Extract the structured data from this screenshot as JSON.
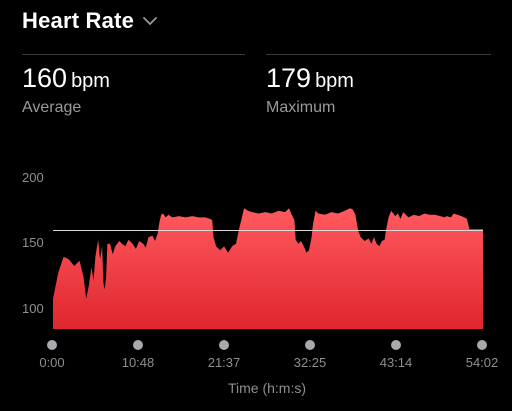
{
  "header": {
    "title": "Heart Rate",
    "dropdown_icon": "chevron-down-icon"
  },
  "stats": {
    "average": {
      "value": "160",
      "unit": "bpm",
      "label": "Average"
    },
    "maximum": {
      "value": "179",
      "unit": "bpm",
      "label": "Maximum"
    }
  },
  "colors": {
    "background": "#000000",
    "fill_top": "#ff5a5f",
    "fill_bottom": "#e0262e",
    "average_line": "#d9d9d9",
    "muted_text": "#8e8e93"
  },
  "chart_data": {
    "type": "area",
    "ylim": [
      85,
      200
    ],
    "xlim_seconds": [
      0,
      3242
    ],
    "y_ticks": [
      "200",
      "150",
      "100"
    ],
    "x_ticks": [
      "0:00",
      "10:48",
      "21:37",
      "32:25",
      "43:14",
      "54:02"
    ],
    "xlabel": "Time (h:m:s)",
    "average_line": 160,
    "series": [
      {
        "values": [
          [
            0,
            108
          ],
          [
            40,
            128
          ],
          [
            80,
            140
          ],
          [
            120,
            138
          ],
          [
            160,
            133
          ],
          [
            200,
            137
          ],
          [
            230,
            125
          ],
          [
            250,
            108
          ],
          [
            270,
            118
          ],
          [
            290,
            132
          ],
          [
            305,
            122
          ],
          [
            320,
            140
          ],
          [
            340,
            153
          ],
          [
            355,
            138
          ],
          [
            370,
            148
          ],
          [
            380,
            120
          ],
          [
            390,
            115
          ],
          [
            400,
            125
          ],
          [
            410,
            150
          ],
          [
            430,
            150
          ],
          [
            450,
            142
          ],
          [
            470,
            148
          ],
          [
            500,
            152
          ],
          [
            520,
            150
          ],
          [
            545,
            148
          ],
          [
            570,
            153
          ],
          [
            600,
            150
          ],
          [
            625,
            146
          ],
          [
            650,
            152
          ],
          [
            680,
            150
          ],
          [
            700,
            147
          ],
          [
            720,
            155
          ],
          [
            750,
            156
          ],
          [
            770,
            152
          ],
          [
            790,
            158
          ],
          [
            800,
            165
          ],
          [
            815,
            172
          ],
          [
            830,
            173
          ],
          [
            850,
            170
          ],
          [
            870,
            172
          ],
          [
            900,
            170
          ],
          [
            950,
            171
          ],
          [
            1000,
            170
          ],
          [
            1050,
            171
          ],
          [
            1100,
            170
          ],
          [
            1150,
            170
          ],
          [
            1180,
            169
          ],
          [
            1200,
            168
          ],
          [
            1210,
            155
          ],
          [
            1230,
            148
          ],
          [
            1260,
            145
          ],
          [
            1290,
            148
          ],
          [
            1320,
            143
          ],
          [
            1350,
            148
          ],
          [
            1380,
            150
          ],
          [
            1400,
            160
          ],
          [
            1420,
            168
          ],
          [
            1440,
            177
          ],
          [
            1470,
            175
          ],
          [
            1500,
            174
          ],
          [
            1550,
            173
          ],
          [
            1600,
            174
          ],
          [
            1650,
            173
          ],
          [
            1700,
            175
          ],
          [
            1750,
            174
          ],
          [
            1780,
            177
          ],
          [
            1800,
            172
          ],
          [
            1820,
            168
          ],
          [
            1830,
            153
          ],
          [
            1850,
            150
          ],
          [
            1870,
            152
          ],
          [
            1890,
            148
          ],
          [
            1900,
            146
          ],
          [
            1910,
            143
          ],
          [
            1930,
            145
          ],
          [
            1950,
            155
          ],
          [
            1960,
            165
          ],
          [
            1980,
            175
          ],
          [
            2000,
            173
          ],
          [
            2050,
            172
          ],
          [
            2100,
            174
          ],
          [
            2150,
            173
          ],
          [
            2200,
            175
          ],
          [
            2240,
            177
          ],
          [
            2260,
            176
          ],
          [
            2280,
            172
          ],
          [
            2300,
            160
          ],
          [
            2320,
            155
          ],
          [
            2350,
            152
          ],
          [
            2380,
            154
          ],
          [
            2400,
            150
          ],
          [
            2420,
            155
          ],
          [
            2440,
            150
          ],
          [
            2460,
            148
          ],
          [
            2480,
            152
          ],
          [
            2500,
            153
          ],
          [
            2510,
            160
          ],
          [
            2530,
            170
          ],
          [
            2550,
            175
          ],
          [
            2580,
            171
          ],
          [
            2600,
            173
          ],
          [
            2620,
            169
          ],
          [
            2640,
            174
          ],
          [
            2680,
            170
          ],
          [
            2720,
            172
          ],
          [
            2760,
            171
          ],
          [
            2800,
            173
          ],
          [
            2840,
            172
          ],
          [
            2880,
            172
          ],
          [
            2920,
            171
          ],
          [
            2950,
            170
          ],
          [
            2970,
            171
          ],
          [
            3000,
            170
          ],
          [
            3020,
            173
          ],
          [
            3050,
            172
          ],
          [
            3080,
            171
          ],
          [
            3100,
            170
          ],
          [
            3120,
            169
          ],
          [
            3140,
            161
          ],
          [
            3242,
            161
          ]
        ]
      }
    ]
  }
}
